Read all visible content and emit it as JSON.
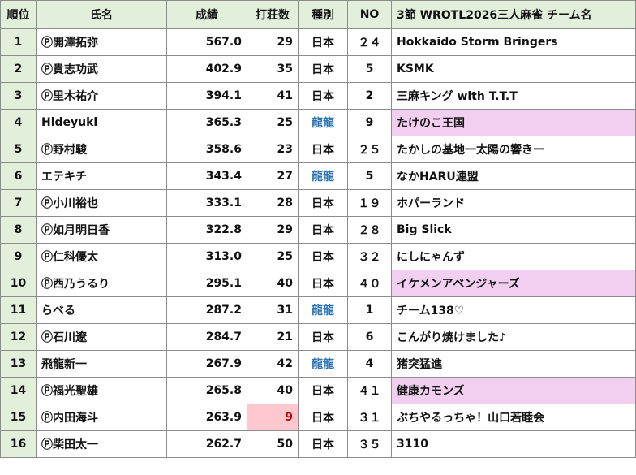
{
  "headers": {
    "rank": "順位",
    "name": "氏名",
    "score": "成績",
    "games": "打荘数",
    "kind": "種別",
    "no": "NO",
    "team": "3節 WROTL2026三人麻雀 チーム名"
  },
  "colors": {
    "header_bg": "#e2efda",
    "rank_bg": "#e2efda",
    "team_highlight": "#f2cff0",
    "alert_bg": "#ffc7ce",
    "alert_text": "#c00000",
    "nonpro_kind_text": "#2e75b6"
  },
  "rows": [
    {
      "rank": "1",
      "name": "Ⓟ開澤拓弥",
      "score": "567.0",
      "games": "29",
      "kind": "日本",
      "no": "２４",
      "team": "Hokkaido Storm Bringers",
      "highlight": false,
      "alert": false
    },
    {
      "rank": "2",
      "name": "Ⓟ貴志功武",
      "score": "402.9",
      "games": "35",
      "kind": "日本",
      "no": "5",
      "team": "KSMK",
      "highlight": false,
      "alert": false
    },
    {
      "rank": "3",
      "name": "Ⓟ里木祐介",
      "score": "394.1",
      "games": "41",
      "kind": "日本",
      "no": "2",
      "team": "三麻キング with T.T.T",
      "highlight": false,
      "alert": false
    },
    {
      "rank": "4",
      "name": "Hideyuki",
      "score": "365.3",
      "games": "25",
      "kind": "龍龍",
      "no": "9",
      "team": "たけのこ王国",
      "highlight": true,
      "alert": false
    },
    {
      "rank": "5",
      "name": "Ⓟ野村駿",
      "score": "358.6",
      "games": "23",
      "kind": "日本",
      "no": "２５",
      "team": "たかしの基地一太陽の響きー",
      "highlight": false,
      "alert": false
    },
    {
      "rank": "6",
      "name": "エテキチ",
      "score": "343.4",
      "games": "27",
      "kind": "龍龍",
      "no": "5",
      "team": "なかHARU連盟",
      "highlight": false,
      "alert": false
    },
    {
      "rank": "7",
      "name": "Ⓟ小川裕也",
      "score": "333.1",
      "games": "28",
      "kind": "日本",
      "no": "１９",
      "team": "ホパーランド",
      "highlight": false,
      "alert": false
    },
    {
      "rank": "8",
      "name": "Ⓟ如月明日香",
      "score": "322.8",
      "games": "29",
      "kind": "日本",
      "no": "２８",
      "team": "Big Slick",
      "highlight": false,
      "alert": false
    },
    {
      "rank": "9",
      "name": "Ⓟ仁科優太",
      "score": "313.0",
      "games": "25",
      "kind": "日本",
      "no": "３２",
      "team": "にしにゃんず",
      "highlight": false,
      "alert": false
    },
    {
      "rank": "10",
      "name": "Ⓟ西乃うるり",
      "score": "295.1",
      "games": "40",
      "kind": "日本",
      "no": "４０",
      "team": "イケメンアベンジャーズ",
      "highlight": true,
      "alert": false
    },
    {
      "rank": "11",
      "name": "らべる",
      "score": "287.2",
      "games": "31",
      "kind": "龍龍",
      "no": "1",
      "team": "チーム138♡",
      "highlight": false,
      "alert": false
    },
    {
      "rank": "12",
      "name": "Ⓟ石川遼",
      "score": "284.7",
      "games": "21",
      "kind": "日本",
      "no": "6",
      "team": "こんがり焼けました♪",
      "highlight": false,
      "alert": false
    },
    {
      "rank": "13",
      "name": "飛龍新一",
      "score": "267.9",
      "games": "42",
      "kind": "龍龍",
      "no": "4",
      "team": "猪突猛進",
      "highlight": false,
      "alert": false
    },
    {
      "rank": "14",
      "name": "Ⓟ福光聖雄",
      "score": "265.8",
      "games": "40",
      "kind": "日本",
      "no": "４１",
      "team": "健康カモンズ",
      "highlight": true,
      "alert": false
    },
    {
      "rank": "15",
      "name": "Ⓟ内田海斗",
      "score": "263.9",
      "games": "9",
      "kind": "日本",
      "no": "３１",
      "team": "ぶちやるっちゃ！山口若睦会",
      "highlight": false,
      "alert": true
    },
    {
      "rank": "16",
      "name": "Ⓟ柴田太一",
      "score": "262.7",
      "games": "50",
      "kind": "日本",
      "no": "３５",
      "team": "3110",
      "highlight": false,
      "alert": false
    }
  ]
}
